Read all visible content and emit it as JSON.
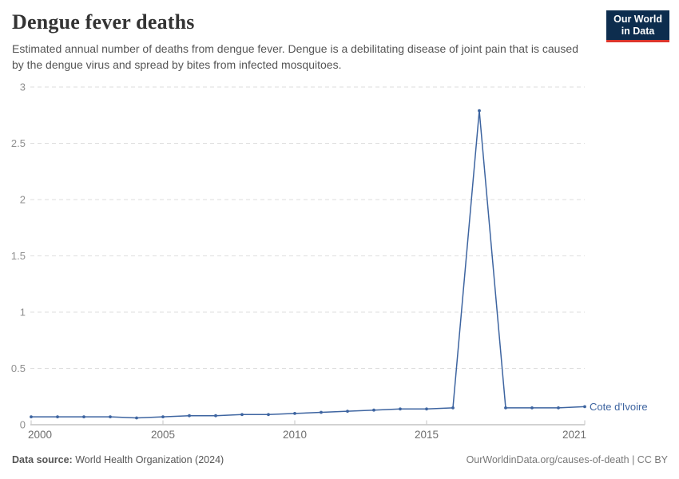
{
  "header": {
    "title": "Dengue fever deaths",
    "subtitle": "Estimated annual number of deaths from dengue fever. Dengue is a debilitating disease of joint pain that is caused by the dengue virus and spread by bites from infected mosquitoes.",
    "logo": {
      "line1": "Our World",
      "line2": "in Data",
      "bg_color": "#0d2d4e",
      "accent_color": "#dc352c"
    }
  },
  "chart_data": {
    "type": "line",
    "title": "Dengue fever deaths",
    "xlabel": "",
    "ylabel": "",
    "xlim": [
      2000,
      2021
    ],
    "ylim": [
      0,
      3
    ],
    "x_ticks": [
      2000,
      2005,
      2010,
      2015,
      2021
    ],
    "y_ticks": [
      0,
      0.5,
      1,
      1.5,
      2,
      2.5,
      3
    ],
    "grid": "dashed-horizontal",
    "legend_position": "end-of-line-label",
    "entity_label": "Cote d'Ivoire",
    "series": [
      {
        "name": "Cote d'Ivoire",
        "color": "#3d64a0",
        "x": [
          2000,
          2001,
          2002,
          2003,
          2004,
          2005,
          2006,
          2007,
          2008,
          2009,
          2010,
          2011,
          2012,
          2013,
          2014,
          2015,
          2016,
          2017,
          2018,
          2019,
          2020,
          2021
        ],
        "values": [
          0.07,
          0.07,
          0.07,
          0.07,
          0.06,
          0.07,
          0.08,
          0.08,
          0.09,
          0.09,
          0.1,
          0.11,
          0.12,
          0.13,
          0.14,
          0.14,
          0.15,
          2.79,
          0.15,
          0.15,
          0.15,
          0.16
        ]
      }
    ],
    "colors": {
      "grid": "#dedede",
      "axis": "#a6a6a6",
      "tick_mark": "#c6c6c6",
      "y_tick_label": "#8f8f8f",
      "x_tick_label": "#6e6e6e"
    }
  },
  "footer": {
    "source_label": "Data source:",
    "source_value": " World Health Organization (2024)",
    "link_text": "OurWorldinData.org/causes-of-death | CC BY"
  }
}
